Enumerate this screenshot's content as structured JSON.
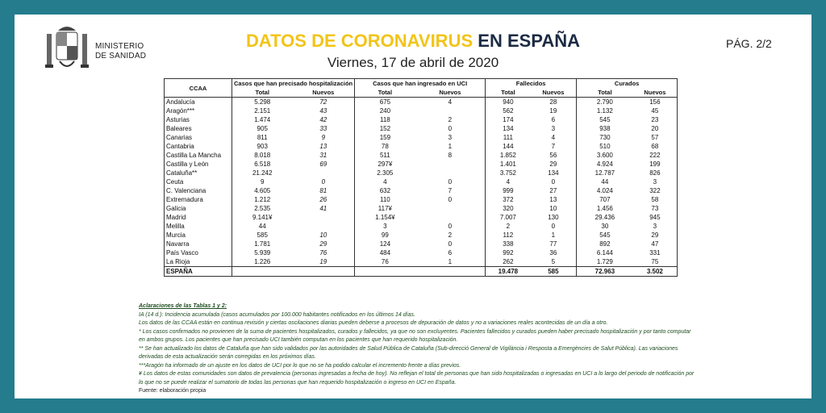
{
  "header": {
    "ministry": [
      "MINISTERIO",
      "DE SANIDAD"
    ],
    "title_highlight": "DATOS DE CORONAVIRUS",
    "title_rest": "EN ESPAÑA",
    "date": "Viernes, 17 de abril de 2020",
    "page": "PÁG. 2/2"
  },
  "table": {
    "region_header": "CCAA",
    "groups": [
      "Casos que han precisado hospitalización",
      "Casos que han ingresado en UCI",
      "Fallecidos",
      "Curados"
    ],
    "subheaders": [
      "Total",
      "Nuevos",
      "Total",
      "Nuevos",
      "Total",
      "Nuevos",
      "Total",
      "Nuevos"
    ],
    "rows": [
      [
        "Andalucía",
        "5.298",
        "72",
        "675",
        "4",
        "940",
        "28",
        "2.790",
        "156"
      ],
      [
        "Aragón***",
        "2.151",
        "43",
        "240",
        null,
        "562",
        "19",
        "1.132",
        "45"
      ],
      [
        "Asturias",
        "1.474",
        "42",
        "118",
        "2",
        "174",
        "6",
        "545",
        "23"
      ],
      [
        "Baleares",
        "905",
        "33",
        "152",
        "0",
        "134",
        "3",
        "938",
        "20"
      ],
      [
        "Canarias",
        "811",
        "9",
        "159",
        "3",
        "111",
        "4",
        "730",
        "57"
      ],
      [
        "Cantabria",
        "903",
        "13",
        "78",
        "1",
        "144",
        "7",
        "510",
        "68"
      ],
      [
        "Castilla La Mancha",
        "8.018",
        "31",
        "511",
        "8",
        "1.852",
        "56",
        "3.600",
        "222"
      ],
      [
        "Castilla y León",
        "6.518",
        "69",
        "297¥",
        null,
        "1.401",
        "29",
        "4.924",
        "199"
      ],
      [
        "Cataluña**",
        "21.242",
        null,
        "2.305",
        null,
        "3.752",
        "134",
        "12.787",
        "826"
      ],
      [
        "Ceuta",
        "9",
        "0",
        "4",
        "0",
        "4",
        "0",
        "44",
        "3"
      ],
      [
        "C. Valenciana",
        "4.605",
        "81",
        "632",
        "7",
        "999",
        "27",
        "4.024",
        "322"
      ],
      [
        "Extremadura",
        "1.212",
        "26",
        "110",
        "0",
        "372",
        "13",
        "707",
        "58"
      ],
      [
        "Galicia",
        "2.535",
        "41",
        "117¥",
        null,
        "320",
        "10",
        "1.456",
        "73"
      ],
      [
        "Madrid",
        "9.141¥",
        null,
        "1.154¥",
        null,
        "7.007",
        "130",
        "29.436",
        "945"
      ],
      [
        "Melilla",
        "44",
        null,
        "3",
        "0",
        "2",
        "0",
        "30",
        "3"
      ],
      [
        "Murcia",
        "585",
        "10",
        "99",
        "2",
        "112",
        "1",
        "545",
        "29"
      ],
      [
        "Navarra",
        "1.781",
        "29",
        "124",
        "0",
        "338",
        "77",
        "892",
        "47"
      ],
      [
        "País Vasco",
        "5.939",
        "76",
        "484",
        "6",
        "992",
        "36",
        "6.144",
        "331"
      ],
      [
        "La Rioja",
        "1.226",
        "19",
        "76",
        "1",
        "262",
        "5",
        "1.729",
        "75"
      ],
      [
        "ESPAÑA",
        null,
        null,
        null,
        null,
        "19.478",
        "585",
        "72.963",
        "3.502"
      ]
    ]
  },
  "notes": {
    "heading": "Aclaraciones de las Tablas 1 y 2:",
    "lines": [
      "IA (14 d.): Incidencia acumulada (casos acumulados por 100.000 habitantes notificados en los últimos 14 días.",
      "Los datos de las CCAA están en continua revisión y ciertas oscilaciones diarias pueden deberse a procesos de depuración de datos y no a variaciones reales acontecidas de un día a otro.",
      "* Los casos confirmados no provienen de la suma de pacientes hospitalizados, curados y fallecidos, ya que no son excluyentes. Pacientes fallecidos y curados pueden haber precisado hospitalización y por tanto computar en ambos grupos. Los pacientes que han precisado UCI también computan en los pacientes que han requerido hospitalización.",
      "** Se han actualizado los datos de Cataluña que han sido validados por las autoridades de Salud Pública de Cataluña (Sub-direcció General de Vigilància i Resposta a Emergències de Salut Pública). Las variaciones derivadas de esta actualización serán corregidas en los próximos días.",
      "***Aragón ha informado de un ajuste en los datos de UCI por lo que no se ha podido calcular el incremento frente a días previos.",
      "¥ Los datos de estas comunidades son datos de prevalencia (personas ingresadas a fecha de hoy). No reflejan el total de personas que han sido hospitalizadas o ingresadas en UCI a lo largo del periodo de notificación por lo que no se puede realizar el sumatorio de todas las personas que han requerido hospitalización o ingreso en UCI en España."
    ],
    "source": "Fuente: elaboración propia"
  }
}
